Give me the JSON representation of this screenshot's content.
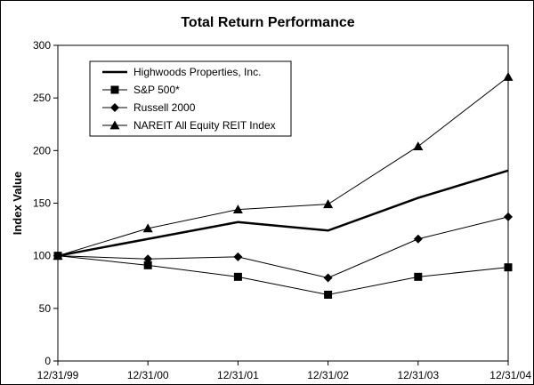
{
  "chart_data": {
    "type": "line",
    "title": "Total Return Performance",
    "xlabel": "",
    "ylabel": "Index Value",
    "categories": [
      "12/31/99",
      "12/31/00",
      "12/31/01",
      "12/31/02",
      "12/31/03",
      "12/31/04"
    ],
    "y_ticks": [
      "0",
      "50",
      "100",
      "150",
      "200",
      "250",
      "300"
    ],
    "ylim": [
      0,
      300
    ],
    "grid": false,
    "legend_position": "top-left",
    "series": [
      {
        "name": "Highwoods Properties, Inc.",
        "marker": "none",
        "stroke": "thick",
        "values": [
          100,
          116,
          132,
          124,
          155,
          181
        ]
      },
      {
        "name": "S&P 500*",
        "marker": "square",
        "stroke": "thin",
        "values": [
          100,
          91,
          80,
          63,
          80,
          89
        ]
      },
      {
        "name": "Russell 2000",
        "marker": "diamond",
        "stroke": "thin",
        "values": [
          100,
          97,
          99,
          79,
          116,
          137
        ]
      },
      {
        "name": "NAREIT All Equity REIT Index",
        "marker": "triangle",
        "stroke": "thin",
        "values": [
          100,
          126,
          144,
          149,
          204,
          270
        ]
      }
    ],
    "colors": {
      "line": "#000000",
      "background": "#ffffff"
    }
  }
}
